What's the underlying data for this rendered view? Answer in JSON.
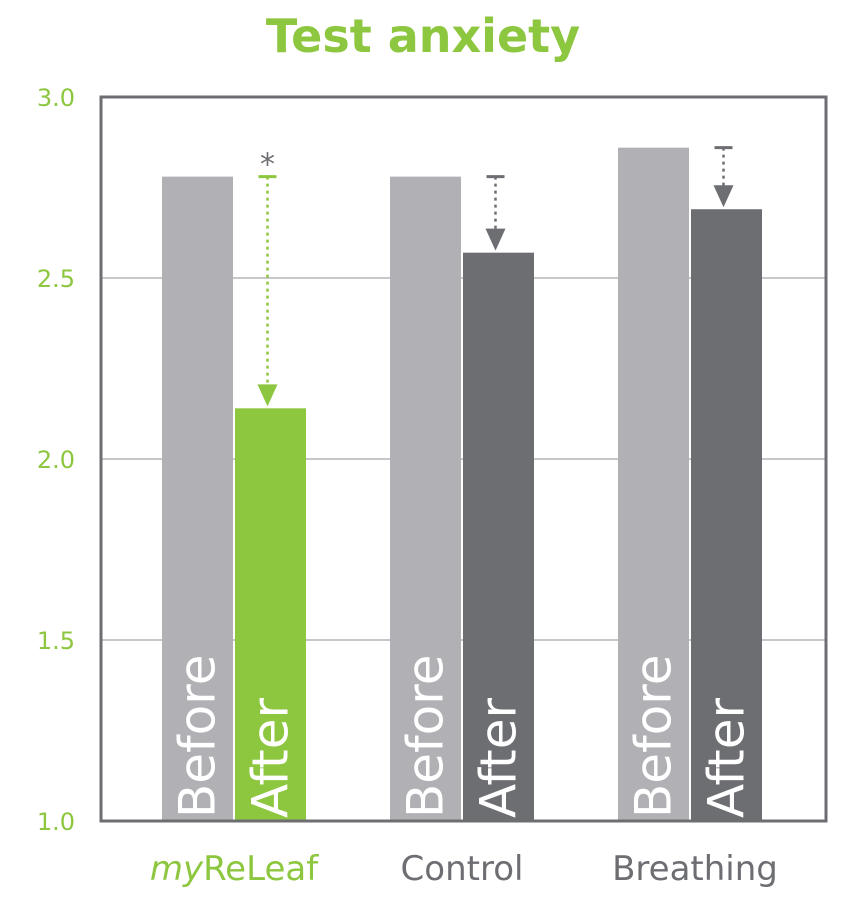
{
  "chart_data": {
    "type": "bar",
    "title": "Test anxiety",
    "xlabel": "",
    "ylabel": "",
    "ylim": [
      1.0,
      3.0
    ],
    "yticks": [
      "1.0",
      "1.5",
      "2.0",
      "2.5",
      "3.0"
    ],
    "grid": true,
    "categories": [
      {
        "prefix": "my",
        "name": "ReLeaf",
        "highlight": true,
        "before": 2.78,
        "after": 2.14,
        "significance": "*"
      },
      {
        "prefix": "",
        "name": "Control",
        "highlight": false,
        "before": 2.78,
        "after": 2.57,
        "significance": ""
      },
      {
        "prefix": "",
        "name": "Breathing",
        "highlight": false,
        "before": 2.86,
        "after": 2.69,
        "significance": ""
      }
    ],
    "bar_labels": {
      "before": "Before",
      "after": "After"
    }
  },
  "colors": {
    "accent": "#8dc63f",
    "before": "#b1b1b5",
    "after": "#6d6e72",
    "arrow": "#6d6e72",
    "grid": "#b5b5b8",
    "frame": "#6d6e72",
    "category_text": "#6d6e72"
  }
}
